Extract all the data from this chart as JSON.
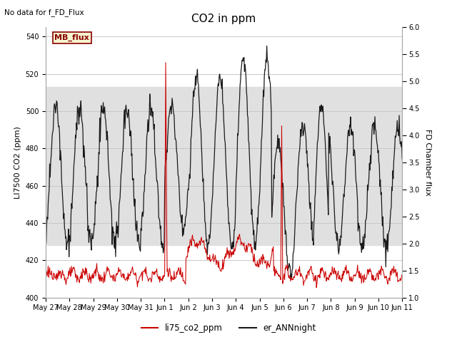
{
  "title": "CO2 in ppm",
  "top_left_text": "No data for f_FD_Flux",
  "ylabel_left": "LI7500 CO2 (ppm)",
  "ylabel_right": "FD Chamber flux",
  "ylim_left": [
    400,
    545
  ],
  "ylim_right": [
    1.0,
    6.0
  ],
  "yticks_left": [
    400,
    420,
    440,
    460,
    480,
    500,
    520,
    540
  ],
  "yticks_right": [
    1.0,
    1.5,
    2.0,
    2.5,
    3.0,
    3.5,
    4.0,
    4.5,
    5.0,
    5.5,
    6.0
  ],
  "xticklabels": [
    "May 27",
    "May 28",
    "May 29",
    "May 30",
    "May 31",
    "Jun 1",
    "Jun 2",
    "Jun 3",
    "Jun 4",
    "Jun 5",
    "Jun 6",
    "Jun 7",
    "Jun 8",
    "Jun 9",
    "Jun 10",
    "Jun 11"
  ],
  "legend_labels": [
    "li75_co2_ppm",
    "er_ANNnight"
  ],
  "legend_colors": [
    "#cc0000",
    "#1a1a1a"
  ],
  "shaded_band_ylim": [
    428,
    513
  ],
  "annotation_box_text": "MB_flux",
  "annotation_box_color": "#8b0000",
  "annotation_box_bg": "#f5f5d0",
  "background_color": "#ffffff",
  "band_color": "#e0e0e0",
  "grid_color": "#c8c8c8",
  "title_fontsize": 11,
  "label_fontsize": 8,
  "tick_fontsize": 7
}
